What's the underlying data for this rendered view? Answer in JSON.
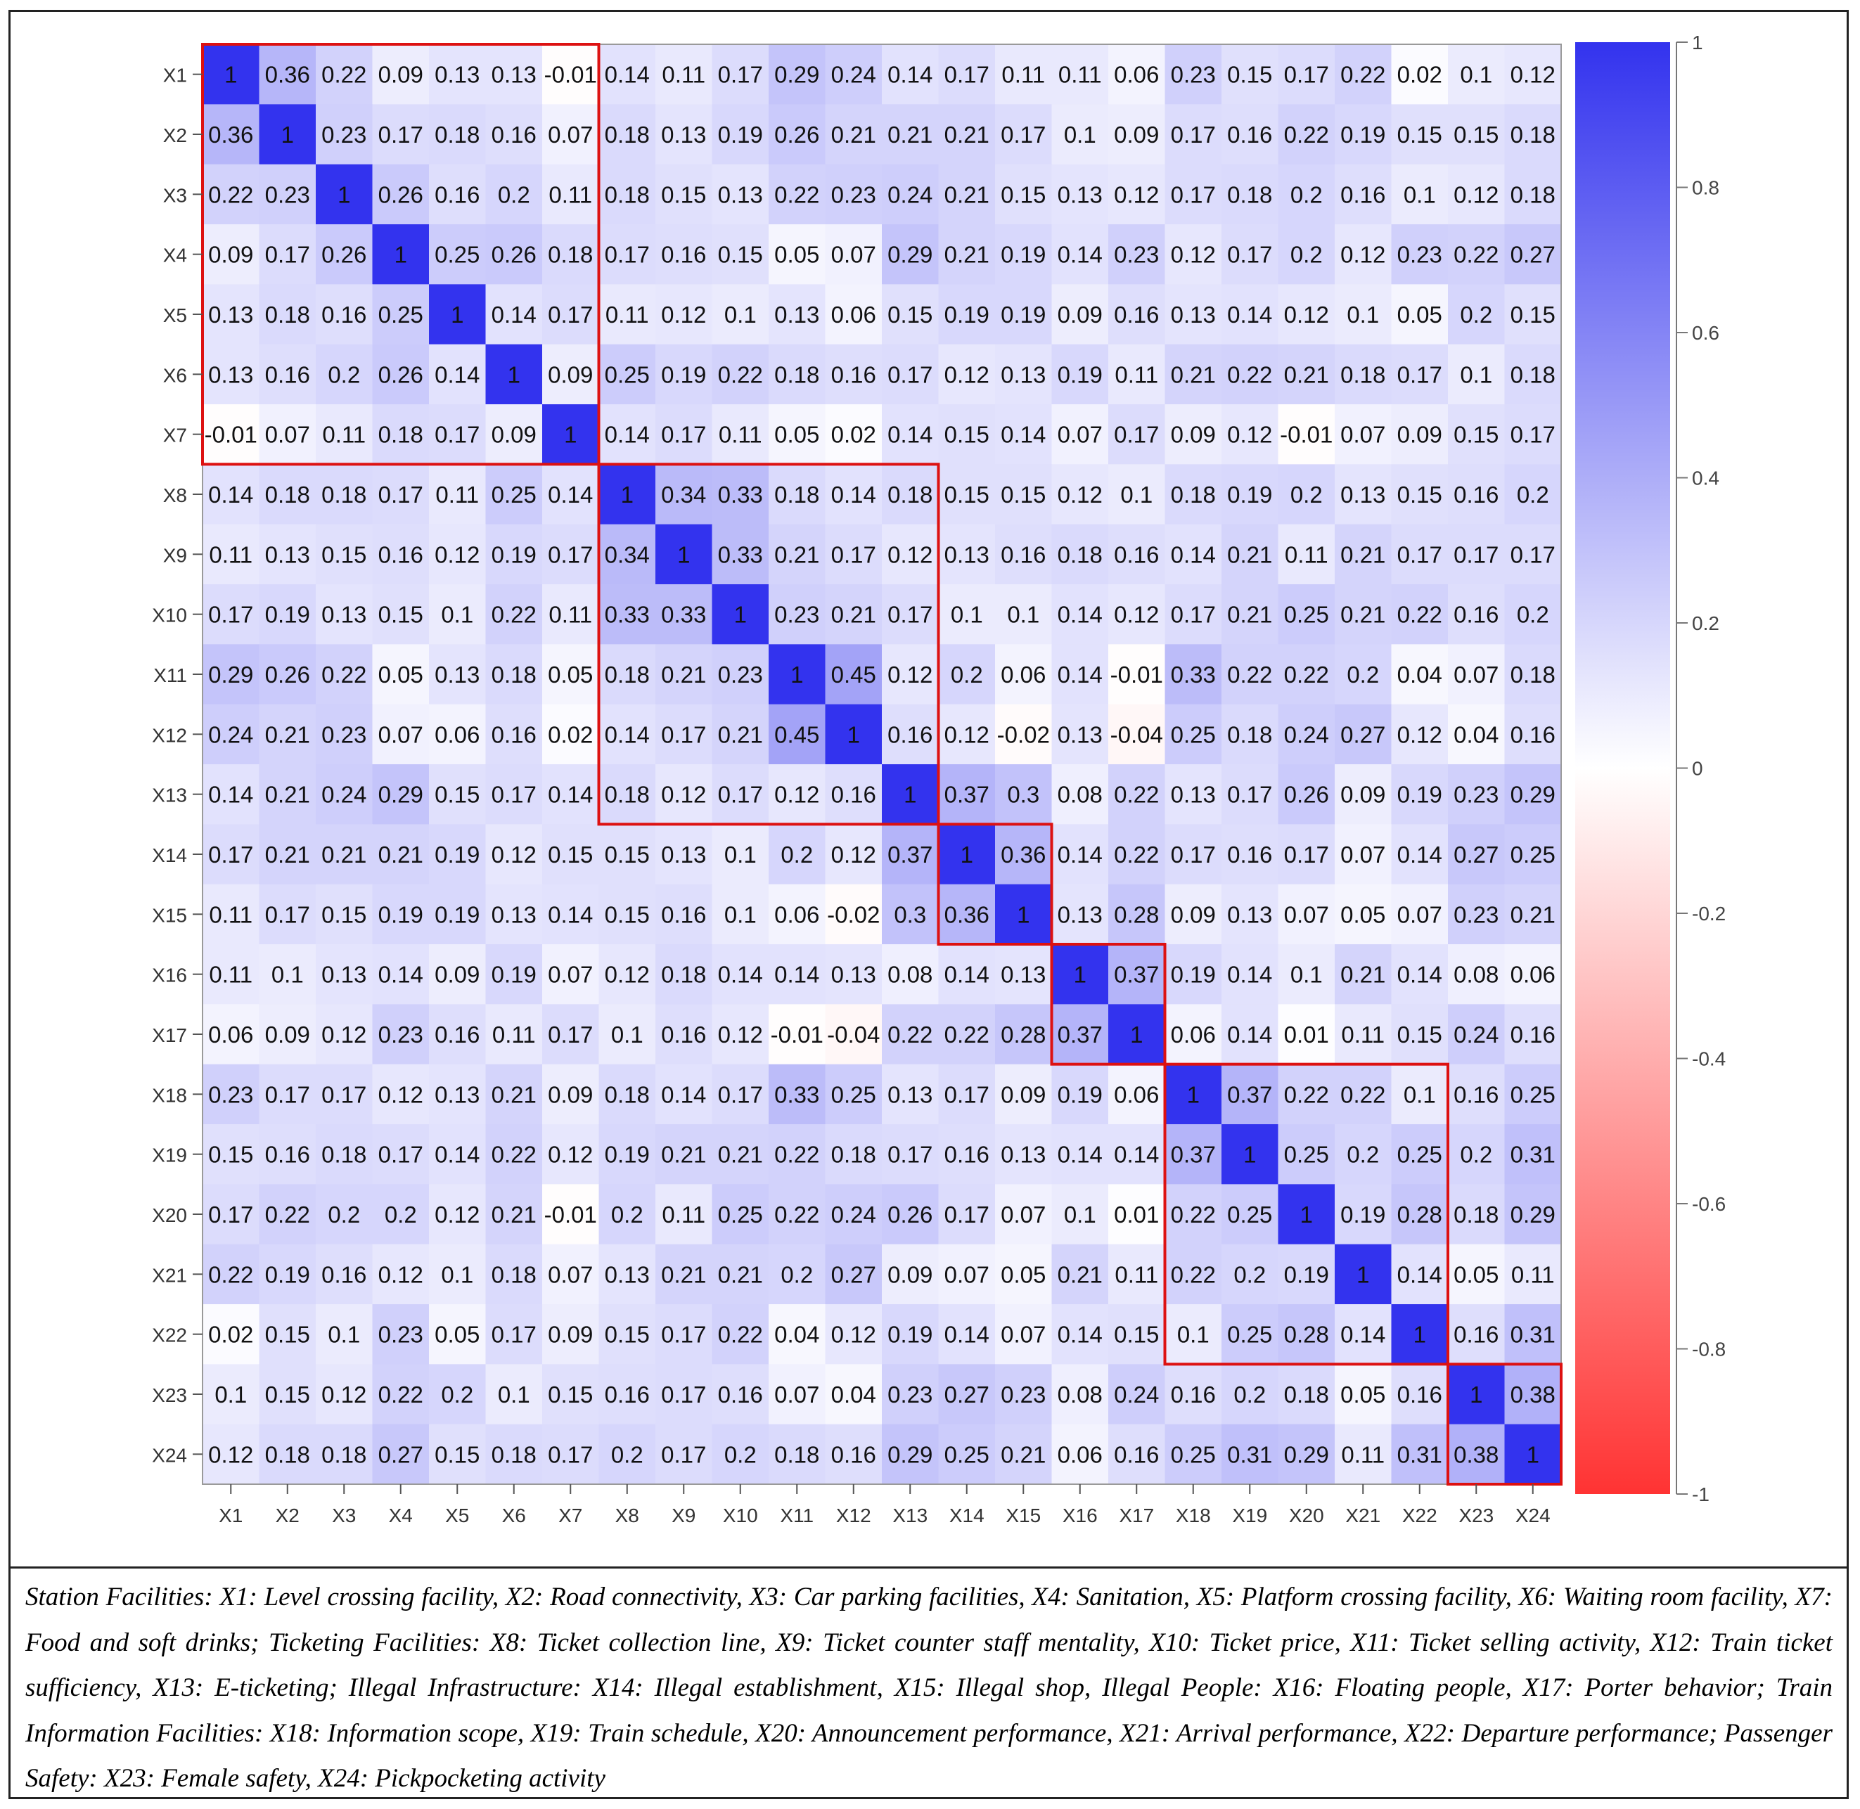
{
  "chart_data": {
    "type": "heatmap",
    "title": "",
    "labels": [
      "X1",
      "X2",
      "X3",
      "X4",
      "X5",
      "X6",
      "X7",
      "X8",
      "X9",
      "X10",
      "X11",
      "X12",
      "X13",
      "X14",
      "X15",
      "X16",
      "X17",
      "X18",
      "X19",
      "X20",
      "X21",
      "X22",
      "X23",
      "X24"
    ],
    "matrix": [
      [
        1,
        0.36,
        0.22,
        0.09,
        0.13,
        0.13,
        -0.01,
        0.14,
        0.11,
        0.17,
        0.29,
        0.24,
        0.14,
        0.17,
        0.11,
        0.11,
        0.06,
        0.23,
        0.15,
        0.17,
        0.22,
        0.02,
        0.1,
        0.12
      ],
      [
        0.36,
        1,
        0.23,
        0.17,
        0.18,
        0.16,
        0.07,
        0.18,
        0.13,
        0.19,
        0.26,
        0.21,
        0.21,
        0.21,
        0.17,
        0.1,
        0.09,
        0.17,
        0.16,
        0.22,
        0.19,
        0.15,
        0.15,
        0.18
      ],
      [
        0.22,
        0.23,
        1,
        0.26,
        0.16,
        0.2,
        0.11,
        0.18,
        0.15,
        0.13,
        0.22,
        0.23,
        0.24,
        0.21,
        0.15,
        0.13,
        0.12,
        0.17,
        0.18,
        0.2,
        0.16,
        0.1,
        0.12,
        0.18
      ],
      [
        0.09,
        0.17,
        0.26,
        1,
        0.25,
        0.26,
        0.18,
        0.17,
        0.16,
        0.15,
        0.05,
        0.07,
        0.29,
        0.21,
        0.19,
        0.14,
        0.23,
        0.12,
        0.17,
        0.2,
        0.12,
        0.23,
        0.22,
        0.27
      ],
      [
        0.13,
        0.18,
        0.16,
        0.25,
        1,
        0.14,
        0.17,
        0.11,
        0.12,
        0.1,
        0.13,
        0.06,
        0.15,
        0.19,
        0.19,
        0.09,
        0.16,
        0.13,
        0.14,
        0.12,
        0.1,
        0.05,
        0.2,
        0.15
      ],
      [
        0.13,
        0.16,
        0.2,
        0.26,
        0.14,
        1,
        0.09,
        0.25,
        0.19,
        0.22,
        0.18,
        0.16,
        0.17,
        0.12,
        0.13,
        0.19,
        0.11,
        0.21,
        0.22,
        0.21,
        0.18,
        0.17,
        0.1,
        0.18
      ],
      [
        -0.01,
        0.07,
        0.11,
        0.18,
        0.17,
        0.09,
        1,
        0.14,
        0.17,
        0.11,
        0.05,
        0.02,
        0.14,
        0.15,
        0.14,
        0.07,
        0.17,
        0.09,
        0.12,
        -0.01,
        0.07,
        0.09,
        0.15,
        0.17
      ],
      [
        0.14,
        0.18,
        0.18,
        0.17,
        0.11,
        0.25,
        0.14,
        1,
        0.34,
        0.33,
        0.18,
        0.14,
        0.18,
        0.15,
        0.15,
        0.12,
        0.1,
        0.18,
        0.19,
        0.2,
        0.13,
        0.15,
        0.16,
        0.2
      ],
      [
        0.11,
        0.13,
        0.15,
        0.16,
        0.12,
        0.19,
        0.17,
        0.34,
        1,
        0.33,
        0.21,
        0.17,
        0.12,
        0.13,
        0.16,
        0.18,
        0.16,
        0.14,
        0.21,
        0.11,
        0.21,
        0.17,
        0.17,
        0.17
      ],
      [
        0.17,
        0.19,
        0.13,
        0.15,
        0.1,
        0.22,
        0.11,
        0.33,
        0.33,
        1,
        0.23,
        0.21,
        0.17,
        0.1,
        0.1,
        0.14,
        0.12,
        0.17,
        0.21,
        0.25,
        0.21,
        0.22,
        0.16,
        0.2
      ],
      [
        0.29,
        0.26,
        0.22,
        0.05,
        0.13,
        0.18,
        0.05,
        0.18,
        0.21,
        0.23,
        1,
        0.45,
        0.12,
        0.2,
        0.06,
        0.14,
        -0.01,
        0.33,
        0.22,
        0.22,
        0.2,
        0.04,
        0.07,
        0.18
      ],
      [
        0.24,
        0.21,
        0.23,
        0.07,
        0.06,
        0.16,
        0.02,
        0.14,
        0.17,
        0.21,
        0.45,
        1,
        0.16,
        0.12,
        -0.02,
        0.13,
        -0.04,
        0.25,
        0.18,
        0.24,
        0.27,
        0.12,
        0.04,
        0.16
      ],
      [
        0.14,
        0.21,
        0.24,
        0.29,
        0.15,
        0.17,
        0.14,
        0.18,
        0.12,
        0.17,
        0.12,
        0.16,
        1,
        0.37,
        0.3,
        0.08,
        0.22,
        0.13,
        0.17,
        0.26,
        0.09,
        0.19,
        0.23,
        0.29
      ],
      [
        0.17,
        0.21,
        0.21,
        0.21,
        0.19,
        0.12,
        0.15,
        0.15,
        0.13,
        0.1,
        0.2,
        0.12,
        0.37,
        1,
        0.36,
        0.14,
        0.22,
        0.17,
        0.16,
        0.17,
        0.07,
        0.14,
        0.27,
        0.25
      ],
      [
        0.11,
        0.17,
        0.15,
        0.19,
        0.19,
        0.13,
        0.14,
        0.15,
        0.16,
        0.1,
        0.06,
        -0.02,
        0.3,
        0.36,
        1,
        0.13,
        0.28,
        0.09,
        0.13,
        0.07,
        0.05,
        0.07,
        0.23,
        0.21
      ],
      [
        0.11,
        0.1,
        0.13,
        0.14,
        0.09,
        0.19,
        0.07,
        0.12,
        0.18,
        0.14,
        0.14,
        0.13,
        0.08,
        0.14,
        0.13,
        1,
        0.37,
        0.19,
        0.14,
        0.1,
        0.21,
        0.14,
        0.08,
        0.06
      ],
      [
        0.06,
        0.09,
        0.12,
        0.23,
        0.16,
        0.11,
        0.17,
        0.1,
        0.16,
        0.12,
        -0.01,
        -0.04,
        0.22,
        0.22,
        0.28,
        0.37,
        1,
        0.06,
        0.14,
        0.01,
        0.11,
        0.15,
        0.24,
        0.16
      ],
      [
        0.23,
        0.17,
        0.17,
        0.12,
        0.13,
        0.21,
        0.09,
        0.18,
        0.14,
        0.17,
        0.33,
        0.25,
        0.13,
        0.17,
        0.09,
        0.19,
        0.06,
        1,
        0.37,
        0.22,
        0.22,
        0.1,
        0.16,
        0.25
      ],
      [
        0.15,
        0.16,
        0.18,
        0.17,
        0.14,
        0.22,
        0.12,
        0.19,
        0.21,
        0.21,
        0.22,
        0.18,
        0.17,
        0.16,
        0.13,
        0.14,
        0.14,
        0.37,
        1,
        0.25,
        0.2,
        0.25,
        0.2,
        0.31
      ],
      [
        0.17,
        0.22,
        0.2,
        0.2,
        0.12,
        0.21,
        -0.01,
        0.2,
        0.11,
        0.25,
        0.22,
        0.24,
        0.26,
        0.17,
        0.07,
        0.1,
        0.01,
        0.22,
        0.25,
        1,
        0.19,
        0.28,
        0.18,
        0.29
      ],
      [
        0.22,
        0.19,
        0.16,
        0.12,
        0.1,
        0.18,
        0.07,
        0.13,
        0.21,
        0.21,
        0.2,
        0.27,
        0.09,
        0.07,
        0.05,
        0.21,
        0.11,
        0.22,
        0.2,
        0.19,
        1,
        0.14,
        0.05,
        0.11
      ],
      [
        0.02,
        0.15,
        0.1,
        0.23,
        0.05,
        0.17,
        0.09,
        0.15,
        0.17,
        0.22,
        0.04,
        0.12,
        0.19,
        0.14,
        0.07,
        0.14,
        0.15,
        0.1,
        0.25,
        0.28,
        0.14,
        1,
        0.16,
        0.31
      ],
      [
        0.1,
        0.15,
        0.12,
        0.22,
        0.2,
        0.1,
        0.15,
        0.16,
        0.17,
        0.16,
        0.07,
        0.04,
        0.23,
        0.27,
        0.23,
        0.08,
        0.24,
        0.16,
        0.2,
        0.18,
        0.05,
        0.16,
        1,
        0.38
      ],
      [
        0.12,
        0.18,
        0.18,
        0.27,
        0.15,
        0.18,
        0.17,
        0.2,
        0.17,
        0.2,
        0.18,
        0.16,
        0.29,
        0.25,
        0.21,
        0.06,
        0.16,
        0.25,
        0.31,
        0.29,
        0.11,
        0.31,
        0.38,
        1
      ]
    ],
    "color_range": [
      -1,
      1
    ],
    "colors": {
      "low": "#ff3333",
      "mid": "#ffffff",
      "high": "#3333ee",
      "box": "#dd1111"
    },
    "colorbar_ticks": [
      "1",
      "0.8",
      "0.6",
      "0.4",
      "0.2",
      "0",
      "-0.2",
      "-0.4",
      "-0.6",
      "-0.8",
      "-1"
    ],
    "groups": [
      [
        1,
        7
      ],
      [
        8,
        13
      ],
      [
        14,
        15
      ],
      [
        16,
        17
      ],
      [
        18,
        22
      ],
      [
        23,
        24
      ]
    ]
  },
  "caption": {
    "parts": [
      "Station Facilities: X1: Level crossing facility, X2: Road connectivity, X3: Car parking facilities, X4: Sanitation, X5: Platform crossing facility, X6: Waiting room facility, X7: Food and soft drinks;",
      "Ticketing Facilities: X8: Ticket collection line, X9: Ticket counter staff mentality, X10: Ticket price, X11: Ticket selling activity, X12: Train ticket sufficiency, X13: E-ticketing;",
      "Illegal Infrastructure: X14: Illegal establishment, X15: Illegal shop,",
      "Illegal People: X16: Floating people, X17: Porter behavior;",
      "Train Information Facilities: X18: Information scope, X19: Train schedule, X20: Announcement performance, X21: Arrival performance, X22: Departure performance;",
      "Passenger Safety: X23: Female safety, X24: Pickpocketing activity"
    ]
  }
}
